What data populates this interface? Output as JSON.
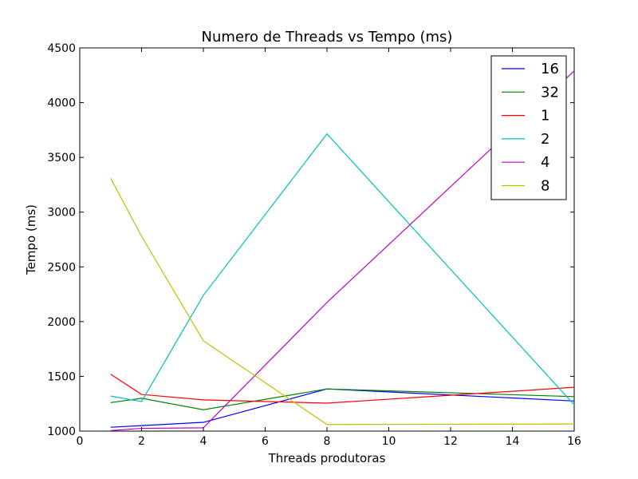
{
  "chart_data": {
    "type": "line",
    "title": "Numero de Threads vs Tempo (ms)",
    "xlabel": "Threads produtoras",
    "ylabel": "Tempo (ms)",
    "xlim": [
      0,
      16
    ],
    "ylim": [
      1000,
      4500
    ],
    "xticks": [
      0,
      2,
      4,
      6,
      8,
      10,
      12,
      14,
      16
    ],
    "yticks": [
      1000,
      1500,
      2000,
      2500,
      3000,
      3500,
      4000,
      4500
    ],
    "grid": false,
    "legend_position": "top-right",
    "x": [
      1,
      2,
      4,
      8,
      16
    ],
    "series": [
      {
        "name": "16",
        "color": "#0000ff",
        "values": [
          1035,
          1050,
          1080,
          1385,
          1275
        ]
      },
      {
        "name": "32",
        "color": "#008000",
        "values": [
          1260,
          1300,
          1195,
          1385,
          1315
        ]
      },
      {
        "name": "1",
        "color": "#ff0000",
        "values": [
          1520,
          1335,
          1285,
          1255,
          1400
        ]
      },
      {
        "name": "2",
        "color": "#00bfbf",
        "values": [
          1320,
          1270,
          2240,
          3715,
          1240
        ]
      },
      {
        "name": "4",
        "color": "#bf00bf",
        "values": [
          1005,
          1025,
          1030,
          2175,
          4290
        ]
      },
      {
        "name": "8",
        "color": "#bfbf00",
        "values": [
          3310,
          2780,
          1825,
          1060,
          1065
        ]
      }
    ]
  }
}
